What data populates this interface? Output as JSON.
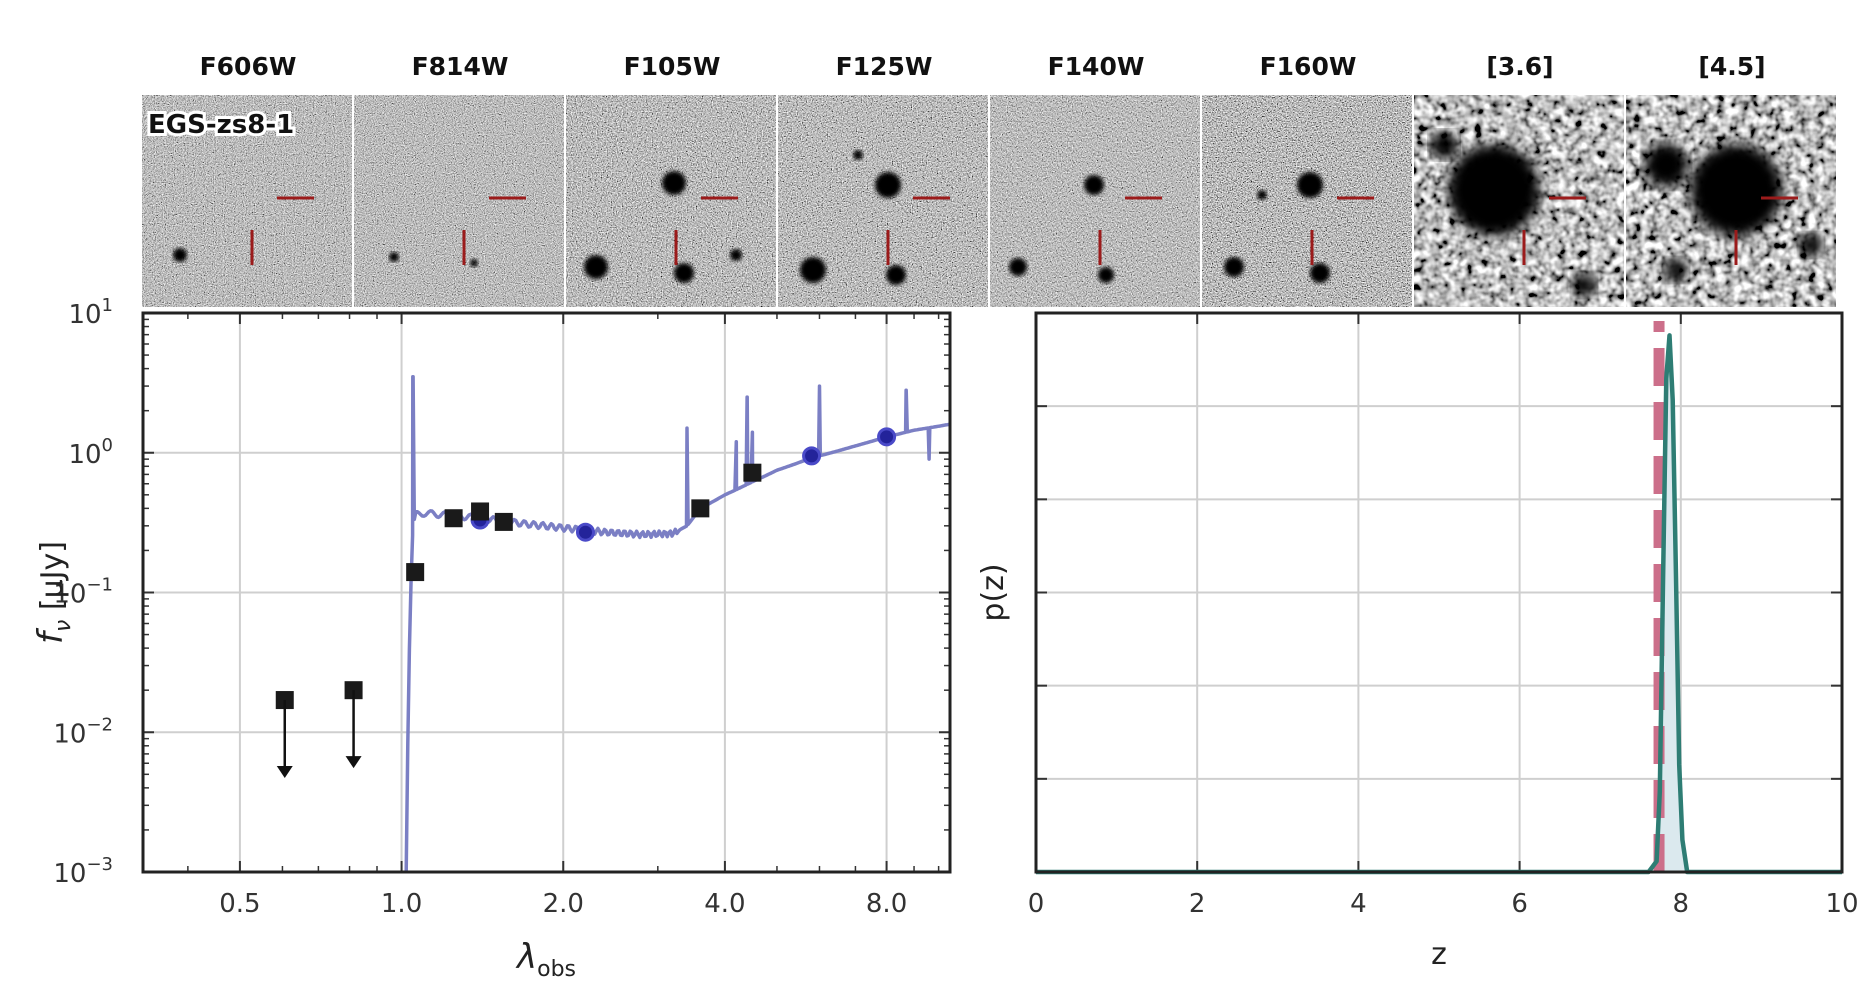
{
  "object_name": "EGS-zs8-1",
  "bands": [
    "F606W",
    "F814W",
    "F105W",
    "F125W",
    "F140W",
    "F160W",
    "[3.6]",
    "[4.5]"
  ],
  "chart_data": [
    {
      "type": "scatter",
      "xlabel_main": "λ",
      "xlabel_sub": "obs",
      "ylabel_main": "f",
      "ylabel_sub": "ν",
      "ylabel_unit": " [μJy]",
      "xscale": "log",
      "yscale": "log",
      "xlim": [
        0.33,
        10.5
      ],
      "ylim": [
        0.001,
        10
      ],
      "xticks": [
        0.5,
        1.0,
        2.0,
        4.0,
        8.0
      ],
      "xtick_labels": [
        "0.5",
        "1.0",
        "2.0",
        "4.0",
        "8.0"
      ],
      "ytick_labels": [
        {
          "base": "10",
          "exp": "1",
          "value": 10
        },
        {
          "base": "10",
          "exp": "0",
          "value": 1
        },
        {
          "base": "10",
          "exp": "−1",
          "value": 0.1
        },
        {
          "base": "10",
          "exp": "−2",
          "value": 0.01
        },
        {
          "base": "10",
          "exp": "−3",
          "value": 0.001
        }
      ],
      "grid": true,
      "observed": [
        {
          "x": 1.06,
          "y": 0.14
        },
        {
          "x": 1.25,
          "y": 0.34
        },
        {
          "x": 1.4,
          "y": 0.38
        },
        {
          "x": 1.55,
          "y": 0.32
        },
        {
          "x": 3.6,
          "y": 0.4
        },
        {
          "x": 4.5,
          "y": 0.72
        }
      ],
      "upper_limits": [
        {
          "x": 0.606,
          "y": 0.017
        },
        {
          "x": 0.814,
          "y": 0.02
        }
      ],
      "model_photometry": [
        {
          "x": 1.4,
          "y": 0.33
        },
        {
          "x": 2.2,
          "y": 0.27
        },
        {
          "x": 5.8,
          "y": 0.95
        },
        {
          "x": 8.0,
          "y": 1.3
        }
      ],
      "sed_continuum": [
        [
          1.02,
          0.001
        ],
        [
          1.03,
          0.02
        ],
        [
          1.04,
          0.1
        ],
        [
          1.05,
          0.3
        ],
        [
          1.06,
          0.36
        ],
        [
          1.1,
          0.37
        ],
        [
          1.2,
          0.36
        ],
        [
          1.4,
          0.34
        ],
        [
          1.7,
          0.31
        ],
        [
          2.0,
          0.29
        ],
        [
          2.4,
          0.27
        ],
        [
          2.8,
          0.26
        ],
        [
          3.2,
          0.265
        ],
        [
          3.4,
          0.3
        ],
        [
          3.6,
          0.4
        ],
        [
          4.0,
          0.5
        ],
        [
          4.5,
          0.62
        ],
        [
          5.0,
          0.75
        ],
        [
          5.8,
          0.92
        ],
        [
          7.0,
          1.12
        ],
        [
          8.0,
          1.3
        ],
        [
          9.0,
          1.45
        ],
        [
          10.5,
          1.6
        ]
      ],
      "sed_lines": [
        {
          "x": 1.05,
          "y": 3.5
        },
        {
          "x": 3.4,
          "y": 1.5
        },
        {
          "x": 4.2,
          "y": 1.2
        },
        {
          "x": 4.4,
          "y": 2.5
        },
        {
          "x": 4.5,
          "y": 1.4
        },
        {
          "x": 6.0,
          "y": 3.0
        },
        {
          "x": 8.7,
          "y": 2.8
        },
        {
          "x": 9.6,
          "y": 0.9
        }
      ],
      "colors": {
        "sed": "#7b7fc4",
        "model_point": "#23239a",
        "observed": "#1a1a1a"
      }
    },
    {
      "type": "line",
      "xlabel": "z",
      "ylabel": "p(z)",
      "xlim": [
        0,
        10
      ],
      "xticks": [
        0,
        2,
        4,
        6,
        8,
        10
      ],
      "xtick_labels": [
        "0",
        "2",
        "4",
        "6",
        "8",
        "10"
      ],
      "grid": true,
      "pz": [
        [
          0,
          0
        ],
        [
          7.6,
          0
        ],
        [
          7.7,
          0.02
        ],
        [
          7.74,
          0.15
        ],
        [
          7.78,
          0.55
        ],
        [
          7.82,
          0.92
        ],
        [
          7.86,
          1.0
        ],
        [
          7.9,
          0.88
        ],
        [
          7.94,
          0.55
        ],
        [
          7.98,
          0.2
        ],
        [
          8.02,
          0.06
        ],
        [
          8.08,
          0.0
        ],
        [
          10,
          0
        ]
      ],
      "spec_z": 7.73,
      "colors": {
        "pz": "#2e7d74",
        "fill": "#dbe9ee",
        "spec_z": "#cc6f8a"
      }
    }
  ]
}
